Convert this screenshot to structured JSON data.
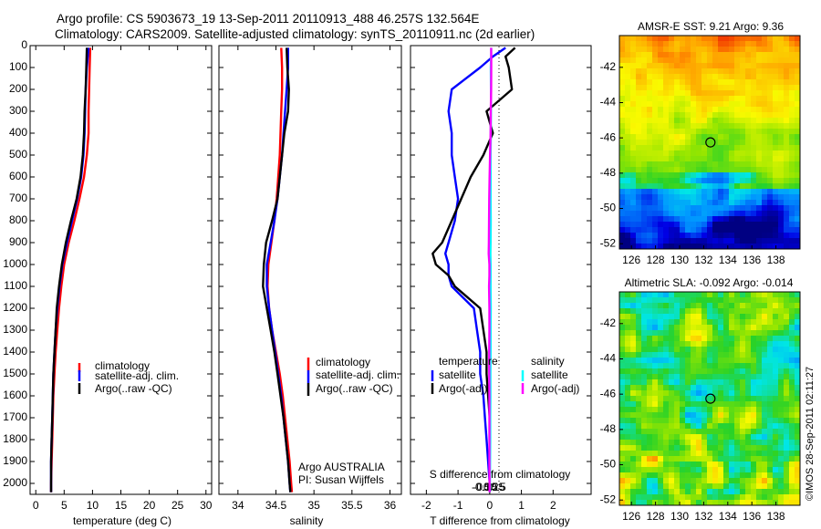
{
  "header": {
    "line1": "Argo profile: CS 5903673_19 13-Sep-2011 20110913_488 46.257S 132.564E",
    "line2": "Climatology: CARS2009. Satellite-adjusted climatology: synTS_20110911.nc (2d earlier)"
  },
  "credit": "©IMOS 28-Sep-2011 02:11:27",
  "colors": {
    "red": "#ff0000",
    "blue": "#0000ff",
    "black": "#000000",
    "cyan": "#00ffff",
    "magenta": "#ff00ff"
  },
  "depth_ticks": [
    0,
    100,
    200,
    300,
    400,
    500,
    600,
    700,
    800,
    900,
    1000,
    1100,
    1200,
    1300,
    1400,
    1500,
    1600,
    1700,
    1800,
    1900,
    2000
  ],
  "chart_data": [
    {
      "type": "line",
      "xlabel": "temperature (deg C)",
      "xlim": [
        -1,
        31
      ],
      "ylim": [
        2050,
        0
      ],
      "xticks": [
        0,
        5,
        10,
        15,
        20,
        25,
        30
      ],
      "legend": {
        "placement": "lower-center",
        "entries": [
          "climatology",
          "satellite-adj. clim.",
          "Argo(..raw -QC)"
        ]
      },
      "depth": [
        10,
        100,
        200,
        300,
        400,
        500,
        600,
        700,
        800,
        900,
        1000,
        1100,
        1200,
        1300,
        1400,
        1500,
        1600,
        1700,
        1800,
        1900,
        2000,
        2040
      ],
      "series": [
        {
          "name": "climatology",
          "color": "red",
          "values": [
            9.6,
            9.5,
            9.4,
            9.3,
            9.3,
            9.0,
            8.5,
            7.7,
            6.8,
            5.8,
            5.0,
            4.5,
            4.1,
            3.8,
            3.5,
            3.3,
            3.1,
            3.0,
            2.9,
            2.8,
            2.7,
            2.7
          ]
        },
        {
          "name": "satellite-adj. clim.",
          "color": "blue",
          "values": [
            9.3,
            9.0,
            8.8,
            8.7,
            8.6,
            8.4,
            8.0,
            7.3,
            6.4,
            5.5,
            4.7,
            4.2,
            3.8,
            3.5,
            3.3,
            3.1,
            3.0,
            2.9,
            2.8,
            2.7,
            2.7,
            2.7
          ]
        },
        {
          "name": "Argo(..raw -QC)",
          "color": "black",
          "values": [
            9.0,
            8.9,
            8.8,
            8.6,
            8.5,
            8.3,
            7.9,
            7.2,
            6.2,
            5.3,
            4.6,
            4.1,
            3.7,
            3.5,
            3.3,
            3.1,
            3.0,
            2.9,
            2.8,
            2.7,
            2.7,
            2.7
          ]
        }
      ]
    },
    {
      "type": "line",
      "xlabel": "salinity",
      "xlim": [
        33.75,
        36.15
      ],
      "ylim": [
        2050,
        0
      ],
      "xticks": [
        34,
        34.5,
        35,
        35.5,
        36
      ],
      "legend": {
        "placement": "lower-center",
        "entries": [
          "climatology",
          "satellite-adj. clim.",
          "Argo(..raw -QC)"
        ]
      },
      "annotation": [
        "Argo AUSTRALIA",
        "PI: Susan Wijffels"
      ],
      "depth": [
        10,
        100,
        200,
        300,
        400,
        500,
        600,
        700,
        800,
        900,
        1000,
        1100,
        1200,
        1300,
        1400,
        1500,
        1600,
        1700,
        1800,
        1900,
        2000,
        2040
      ],
      "series": [
        {
          "name": "climatology",
          "color": "red",
          "values": [
            34.57,
            34.58,
            34.58,
            34.57,
            34.56,
            34.55,
            34.53,
            34.51,
            34.48,
            34.44,
            34.4,
            34.39,
            34.41,
            34.45,
            34.5,
            34.55,
            34.59,
            34.62,
            34.65,
            34.68,
            34.7,
            34.71
          ]
        },
        {
          "name": "satellite-adj. clim.",
          "color": "blue",
          "values": [
            34.66,
            34.66,
            34.64,
            34.62,
            34.6,
            34.58,
            34.55,
            34.52,
            34.48,
            34.43,
            34.38,
            34.38,
            34.41,
            34.45,
            34.49,
            34.53,
            34.57,
            34.6,
            34.63,
            34.66,
            34.68,
            34.69
          ]
        },
        {
          "name": "Argo(..raw -QC)",
          "color": "black",
          "values": [
            34.64,
            34.65,
            34.67,
            34.66,
            34.61,
            34.58,
            34.55,
            34.52,
            34.45,
            34.37,
            34.34,
            34.33,
            34.38,
            34.43,
            34.48,
            34.52,
            34.56,
            34.6,
            34.63,
            34.66,
            34.68,
            34.69
          ]
        }
      ]
    },
    {
      "type": "line",
      "xlabel": "T difference from climatology",
      "xlabel_top": "S difference from climatology",
      "xlim": [
        -2.5,
        3.2
      ],
      "ylim": [
        2050,
        0
      ],
      "xticks": [
        -2,
        -1,
        0,
        1,
        2
      ],
      "xticks_top": [
        {
          "value": -0.5,
          "label": "-0.5"
        },
        {
          "value": -0.25,
          "label": "-0.25"
        },
        {
          "value": 0,
          "label": "0"
        },
        {
          "value": 0.25,
          "label": "0.25"
        },
        {
          "value": 0.5,
          "label": "0.5"
        }
      ],
      "legend_t": {
        "title": "temperature",
        "entries": [
          "satellite",
          "Argo(-adj)"
        ]
      },
      "legend_s": {
        "title": "salinity",
        "entries": [
          "satellite",
          "Argo(-adj)"
        ]
      },
      "depth": [
        10,
        50,
        100,
        200,
        300,
        400,
        500,
        600,
        700,
        800,
        900,
        950,
        1000,
        1050,
        1100,
        1200,
        1300,
        1400,
        1500,
        1600,
        1700,
        1800,
        1900,
        2000,
        2040
      ],
      "series": [
        {
          "name": "T satellite",
          "color": "blue",
          "values": [
            0.5,
            0.1,
            -0.3,
            -1.2,
            -1.3,
            -1.2,
            -1.2,
            -1.1,
            -1.0,
            -1.1,
            -1.3,
            -1.4,
            -1.3,
            -1.3,
            -1.2,
            -0.5,
            -0.4,
            -0.3,
            -0.3,
            -0.2,
            -0.15,
            -0.1,
            -0.05,
            0,
            0
          ]
        },
        {
          "name": "T Argo(-adj)",
          "color": "black",
          "values": [
            0.8,
            0.5,
            0.6,
            0.7,
            -0.1,
            0.1,
            -0.2,
            -0.6,
            -0.9,
            -1.2,
            -1.5,
            -1.8,
            -1.7,
            -1.3,
            -1.1,
            -0.3,
            -0.2,
            -0.1,
            -0.1,
            -0.05,
            0,
            0,
            0,
            0,
            0
          ]
        },
        {
          "name": "S satellite",
          "color": "cyan",
          "values": [
            0.09,
            0.08,
            0.06,
            0.07,
            0.07,
            0.06,
            0.05,
            0.05,
            0.05,
            0.06,
            0.05,
            0.04,
            0.05,
            0.05,
            0.05,
            0.06,
            0.05,
            0.05,
            0.04,
            0.04,
            0.03,
            0.03,
            0.02,
            0.01,
            0.01
          ]
        },
        {
          "name": "S Argo(-adj)",
          "color": "magenta",
          "values": [
            0.08,
            0.09,
            0.09,
            0.08,
            0.06,
            0.05,
            0.02,
            -0.01,
            -0.03,
            -0.04,
            -0.05,
            -0.06,
            -0.02,
            -0.02,
            -0.04,
            -0.02,
            -0.02,
            -0.03,
            -0.03,
            -0.02,
            -0.02,
            -0.02,
            -0.02,
            -0.01,
            -0.01
          ]
        }
      ]
    },
    {
      "type": "heatmap",
      "title": "AMSR-E SST: 9.21  Argo: 9.36",
      "xlim": [
        125,
        140
      ],
      "ylim": [
        -52.3,
        -40.2
      ],
      "xticks": [
        126,
        128,
        130,
        132,
        134,
        136,
        138
      ],
      "yticks": [
        -42,
        -44,
        -46,
        -48,
        -50,
        -52
      ],
      "marker": {
        "lon": 132.564,
        "lat": -46.257
      }
    },
    {
      "type": "heatmap",
      "title": "Altimetric SLA: -0.092  Argo: -0.014",
      "xlim": [
        125,
        140
      ],
      "ylim": [
        -52.3,
        -40.2
      ],
      "xticks": [
        126,
        128,
        130,
        132,
        134,
        136,
        138
      ],
      "yticks": [
        -42,
        -44,
        -46,
        -48,
        -50,
        -52
      ],
      "marker": {
        "lon": 132.564,
        "lat": -46.257
      }
    }
  ]
}
